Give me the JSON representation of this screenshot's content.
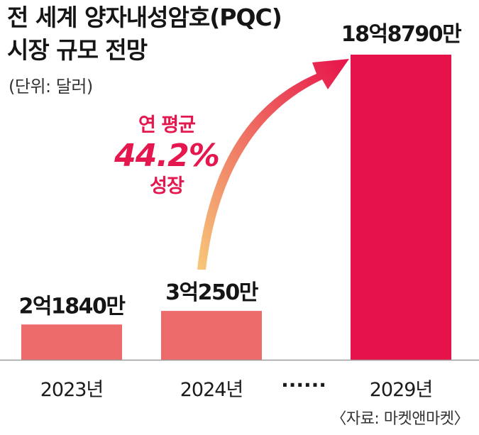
{
  "header": {
    "title_line1": "전 세계 양자내성암호(PQC)",
    "title_line2": "시장 규모 전망",
    "unit": "(단위: 달러)"
  },
  "growth_note": {
    "line1": "연 평균",
    "line2": "44.2%",
    "line3": "성장"
  },
  "ellipsis": "······",
  "source": "〈자료: 마켓앤마켓〉",
  "colors": {
    "bar_small": "#ee6b6b",
    "bar_large": "#e6124a",
    "accent_text": "#e4174e",
    "arrow_start": "#f7c97a",
    "arrow_end": "#e6124a"
  },
  "chart_data": {
    "type": "bar",
    "categories": [
      "2023년",
      "2024년",
      "2029년"
    ],
    "values": [
      218400000,
      302500000,
      1887900000
    ],
    "value_labels": [
      "2억1840만",
      "3억250만",
      "18억8790만"
    ],
    "ylim": [
      0,
      1887900000
    ],
    "grid": false,
    "legend": "none",
    "xlabel": "",
    "ylabel": ""
  }
}
